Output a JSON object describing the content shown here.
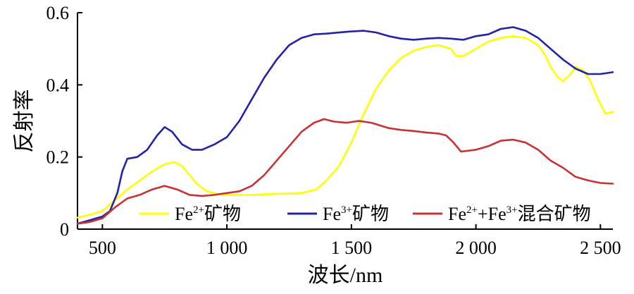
{
  "chart_data": {
    "type": "line",
    "title": "",
    "xlabel": "波长/nm",
    "ylabel": "反射率",
    "xlim": [
      400,
      2550
    ],
    "ylim": [
      0,
      0.6
    ],
    "x_ticks": [
      500,
      1000,
      1500,
      2000,
      2500
    ],
    "x_tick_labels": [
      "500",
      "1 000",
      "1 500",
      "2 000",
      "2 500"
    ],
    "y_ticks": [
      0,
      0.2,
      0.4,
      0.6
    ],
    "y_tick_labels": [
      "0",
      "0.2",
      "0.4",
      "0.6"
    ],
    "legend_position": "bottom",
    "series": [
      {
        "name": "Fe2+矿物",
        "name_base": "Fe",
        "name_sup": "2+",
        "name_suffix": "矿物",
        "color": "#ffff00",
        "points": [
          [
            400,
            0.032
          ],
          [
            450,
            0.04
          ],
          [
            500,
            0.05
          ],
          [
            550,
            0.08
          ],
          [
            600,
            0.11
          ],
          [
            650,
            0.135
          ],
          [
            700,
            0.16
          ],
          [
            750,
            0.18
          ],
          [
            790,
            0.186
          ],
          [
            820,
            0.175
          ],
          [
            850,
            0.15
          ],
          [
            880,
            0.125
          ],
          [
            920,
            0.105
          ],
          [
            960,
            0.098
          ],
          [
            1000,
            0.095
          ],
          [
            1100,
            0.095
          ],
          [
            1200,
            0.098
          ],
          [
            1300,
            0.1
          ],
          [
            1360,
            0.11
          ],
          [
            1400,
            0.135
          ],
          [
            1450,
            0.175
          ],
          [
            1500,
            0.24
          ],
          [
            1550,
            0.32
          ],
          [
            1600,
            0.39
          ],
          [
            1650,
            0.44
          ],
          [
            1700,
            0.475
          ],
          [
            1750,
            0.495
          ],
          [
            1800,
            0.505
          ],
          [
            1850,
            0.51
          ],
          [
            1900,
            0.5
          ],
          [
            1920,
            0.48
          ],
          [
            1950,
            0.48
          ],
          [
            2000,
            0.5
          ],
          [
            2050,
            0.52
          ],
          [
            2100,
            0.53
          ],
          [
            2150,
            0.535
          ],
          [
            2200,
            0.53
          ],
          [
            2250,
            0.51
          ],
          [
            2280,
            0.48
          ],
          [
            2300,
            0.45
          ],
          [
            2330,
            0.42
          ],
          [
            2350,
            0.41
          ],
          [
            2380,
            0.43
          ],
          [
            2400,
            0.45
          ],
          [
            2430,
            0.44
          ],
          [
            2460,
            0.41
          ],
          [
            2490,
            0.36
          ],
          [
            2520,
            0.32
          ],
          [
            2550,
            0.325
          ]
        ]
      },
      {
        "name": "Fe3+矿物",
        "name_base": "Fe",
        "name_sup": "3+",
        "name_suffix": "矿物",
        "color": "#2222aa",
        "points": [
          [
            400,
            0.015
          ],
          [
            450,
            0.025
          ],
          [
            500,
            0.035
          ],
          [
            530,
            0.05
          ],
          [
            560,
            0.1
          ],
          [
            580,
            0.16
          ],
          [
            600,
            0.195
          ],
          [
            640,
            0.2
          ],
          [
            680,
            0.22
          ],
          [
            720,
            0.26
          ],
          [
            750,
            0.283
          ],
          [
            780,
            0.27
          ],
          [
            820,
            0.235
          ],
          [
            860,
            0.22
          ],
          [
            900,
            0.22
          ],
          [
            950,
            0.235
          ],
          [
            1000,
            0.255
          ],
          [
            1050,
            0.3
          ],
          [
            1100,
            0.36
          ],
          [
            1150,
            0.42
          ],
          [
            1200,
            0.47
          ],
          [
            1250,
            0.51
          ],
          [
            1300,
            0.53
          ],
          [
            1350,
            0.54
          ],
          [
            1400,
            0.542
          ],
          [
            1450,
            0.545
          ],
          [
            1500,
            0.548
          ],
          [
            1550,
            0.55
          ],
          [
            1600,
            0.545
          ],
          [
            1650,
            0.535
          ],
          [
            1700,
            0.528
          ],
          [
            1750,
            0.525
          ],
          [
            1800,
            0.528
          ],
          [
            1850,
            0.53
          ],
          [
            1900,
            0.528
          ],
          [
            1950,
            0.525
          ],
          [
            2000,
            0.535
          ],
          [
            2050,
            0.54
          ],
          [
            2100,
            0.555
          ],
          [
            2150,
            0.56
          ],
          [
            2200,
            0.55
          ],
          [
            2250,
            0.53
          ],
          [
            2300,
            0.5
          ],
          [
            2350,
            0.47
          ],
          [
            2400,
            0.445
          ],
          [
            2450,
            0.43
          ],
          [
            2500,
            0.43
          ],
          [
            2550,
            0.435
          ]
        ]
      },
      {
        "name": "Fe2++Fe3+混合矿物",
        "name_base": "Fe",
        "name_sup": "2+",
        "name_mid": "+Fe",
        "name_sup2": "3+",
        "name_suffix": "混合矿物",
        "color": "#c83232",
        "points": [
          [
            400,
            0.015
          ],
          [
            450,
            0.02
          ],
          [
            500,
            0.03
          ],
          [
            550,
            0.06
          ],
          [
            600,
            0.085
          ],
          [
            650,
            0.095
          ],
          [
            700,
            0.11
          ],
          [
            750,
            0.12
          ],
          [
            800,
            0.11
          ],
          [
            850,
            0.095
          ],
          [
            900,
            0.092
          ],
          [
            950,
            0.095
          ],
          [
            1000,
            0.1
          ],
          [
            1050,
            0.105
          ],
          [
            1100,
            0.12
          ],
          [
            1150,
            0.15
          ],
          [
            1200,
            0.19
          ],
          [
            1250,
            0.23
          ],
          [
            1300,
            0.27
          ],
          [
            1350,
            0.295
          ],
          [
            1390,
            0.305
          ],
          [
            1430,
            0.298
          ],
          [
            1480,
            0.295
          ],
          [
            1530,
            0.3
          ],
          [
            1580,
            0.295
          ],
          [
            1650,
            0.28
          ],
          [
            1700,
            0.275
          ],
          [
            1750,
            0.272
          ],
          [
            1800,
            0.268
          ],
          [
            1850,
            0.265
          ],
          [
            1880,
            0.26
          ],
          [
            1910,
            0.24
          ],
          [
            1940,
            0.215
          ],
          [
            2000,
            0.22
          ],
          [
            2050,
            0.23
          ],
          [
            2100,
            0.245
          ],
          [
            2150,
            0.248
          ],
          [
            2200,
            0.24
          ],
          [
            2250,
            0.22
          ],
          [
            2300,
            0.19
          ],
          [
            2350,
            0.17
          ],
          [
            2400,
            0.145
          ],
          [
            2450,
            0.135
          ],
          [
            2500,
            0.128
          ],
          [
            2550,
            0.126
          ]
        ]
      }
    ]
  }
}
